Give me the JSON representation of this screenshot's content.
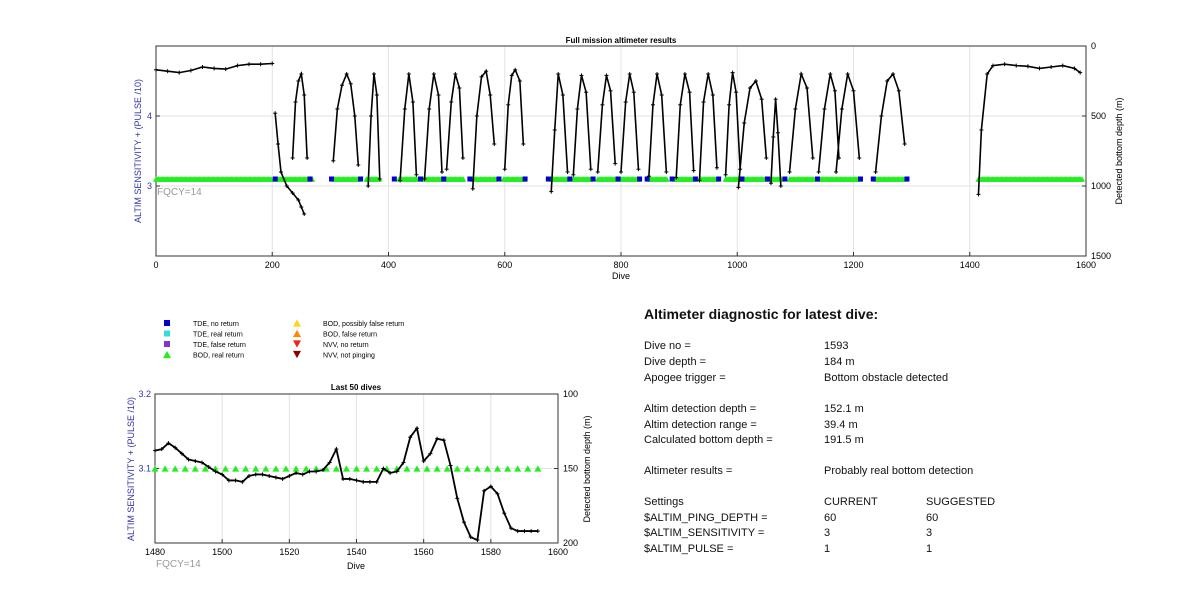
{
  "colors": {
    "tde_no_return": "#0000cc",
    "tde_real_return": "#33dddd",
    "tde_false_return": "#8833cc",
    "bod_real_return": "#22ee22",
    "bod_possibly_false": "#ffd21f",
    "bod_false_return": "#ff8800",
    "nvv_no_return": "#ee2222",
    "nvv_not_pinging": "#8b0000",
    "left_axis": "#3333aa",
    "fqcy_text": "#999999"
  },
  "legend": {
    "items": [
      {
        "label": "TDE, no return",
        "marker": "square",
        "color": "#0000cc"
      },
      {
        "label": "TDE, real return",
        "marker": "square",
        "color": "#33dddd"
      },
      {
        "label": "TDE, false return",
        "marker": "square",
        "color": "#8833cc"
      },
      {
        "label": "BOD, real return",
        "marker": "triangle-up",
        "color": "#22ee22"
      },
      {
        "label": "BOD, possibly false return",
        "marker": "triangle-up",
        "color": "#ffd21f"
      },
      {
        "label": "BOD, false return",
        "marker": "triangle-up",
        "color": "#ff8800"
      },
      {
        "label": "NVV, no return",
        "marker": "triangle-down",
        "color": "#ee2222"
      },
      {
        "label": "NVV, not pinging",
        "marker": "triangle-down",
        "color": "#8b0000"
      }
    ]
  },
  "chart_data": [
    {
      "type": "line",
      "title": "Full mission altimeter results",
      "xlabel": "Dive",
      "ylabel_left": "ALTIM SENSITIVITY + (PULSE /10)",
      "ylabel_right": "Detected bottom depth (m)",
      "xlim": [
        0,
        1600
      ],
      "ylim_left": [
        2,
        5
      ],
      "ylim_right": [
        1500,
        0
      ],
      "xticks": [
        "0",
        "200",
        "400",
        "600",
        "800",
        "1000",
        "1200",
        "1400",
        "1600"
      ],
      "yticks_left": [
        "3",
        "4"
      ],
      "yticks_right": [
        "0",
        "500",
        "1000",
        "1500"
      ],
      "annotation": "FQCY=14",
      "grid": true,
      "series": [
        {
          "kind": "bottom_depth",
          "segments": [
            {
              "x": [
                0,
                20,
                40,
                60,
                80,
                100,
                120,
                140,
                160,
                180,
                200
              ],
              "y": [
                170,
                180,
                190,
                175,
                150,
                160,
                165,
                140,
                130,
                130,
                125
              ]
            },
            {
              "x": [
                205,
                210,
                215,
                225,
                235,
                245,
                250,
                255
              ],
              "y": [
                480,
                700,
                900,
                1000,
                1050,
                1100,
                1150,
                1200
              ]
            },
            {
              "x": [
                235,
                240,
                245,
                250,
                255,
                260
              ],
              "y": [
                800,
                400,
                250,
                200,
                350,
                800
              ]
            },
            {
              "x": [
                305,
                312,
                320,
                328,
                335,
                342,
                348
              ],
              "y": [
                820,
                450,
                280,
                200,
                270,
                500,
                850
              ]
            },
            {
              "x": [
                365,
                370,
                375,
                380,
                385
              ],
              "y": [
                1000,
                500,
                200,
                350,
                950
              ]
            },
            {
              "x": [
                420,
                428,
                435,
                442,
                448
              ],
              "y": [
                960,
                450,
                200,
                400,
                920
              ]
            },
            {
              "x": [
                462,
                470,
                478,
                486,
                492
              ],
              "y": [
                950,
                450,
                200,
                350,
                900
              ]
            },
            {
              "x": [
                500,
                508,
                515,
                522,
                528
              ],
              "y": [
                880,
                400,
                200,
                300,
                800
              ]
            },
            {
              "x": [
                545,
                552,
                560,
                568,
                575,
                582
              ],
              "y": [
                1020,
                500,
                220,
                180,
                350,
                700
              ]
            },
            {
              "x": [
                600,
                606,
                612,
                618,
                626,
                632
              ],
              "y": [
                880,
                420,
                210,
                170,
                250,
                700
              ]
            },
            {
              "x": [
                680,
                686,
                692,
                700,
                708
              ],
              "y": [
                1040,
                600,
                200,
                350,
                900
              ]
            },
            {
              "x": [
                718,
                725,
                732,
                740,
                748
              ],
              "y": [
                920,
                450,
                210,
                330,
                880
              ]
            },
            {
              "x": [
                760,
                768,
                775,
                782,
                790
              ],
              "y": [
                900,
                420,
                210,
                320,
                840
              ]
            },
            {
              "x": [
                800,
                808,
                815,
                822,
                830
              ],
              "y": [
                900,
                400,
                200,
                330,
                880
              ]
            },
            {
              "x": [
                848,
                855,
                862,
                870,
                878
              ],
              "y": [
                930,
                420,
                200,
                350,
                900
              ]
            },
            {
              "x": [
                895,
                902,
                910,
                918,
                925
              ],
              "y": [
                940,
                420,
                200,
                330,
                890
              ]
            },
            {
              "x": [
                935,
                942,
                950,
                958,
                965
              ],
              "y": [
                960,
                400,
                200,
                350,
                870
              ]
            },
            {
              "x": [
                980,
                986,
                992,
                998,
                1005
              ],
              "y": [
                920,
                420,
                190,
                330,
                880
              ]
            },
            {
              "x": [
                1002,
                1012,
                1022,
                1032,
                1042,
                1050
              ],
              "y": [
                1010,
                550,
                300,
                250,
                380,
                800
              ]
            },
            {
              "x": [
                1058,
                1062,
                1066,
                1070,
                1075
              ],
              "y": [
                980,
                650,
                380,
                620,
                1000
              ]
            },
            {
              "x": [
                1090,
                1100,
                1110,
                1120,
                1130
              ],
              "y": [
                900,
                450,
                200,
                300,
                800
              ]
            },
            {
              "x": [
                1140,
                1150,
                1160,
                1168,
                1175
              ],
              "y": [
                900,
                450,
                200,
                320,
                800
              ]
            },
            {
              "x": [
                1170,
                1180,
                1190,
                1200,
                1210
              ],
              "y": [
                900,
                450,
                200,
                320,
                800
              ]
            },
            {
              "x": [
                1238,
                1248,
                1258,
                1268,
                1278,
                1288
              ],
              "y": [
                900,
                500,
                250,
                200,
                320,
                700
              ]
            },
            {
              "x": [
                1415,
                1420,
                1430,
                1440,
                1460,
                1480,
                1500,
                1520,
                1540,
                1560,
                1580,
                1590
              ],
              "y": [
                1060,
                600,
                200,
                140,
                130,
                140,
                145,
                160,
                150,
                140,
                160,
                190
              ]
            }
          ]
        },
        {
          "kind": "bod_real_return_bands",
          "y_left": 3.1,
          "ranges": [
            [
              0,
              200
            ],
            [
              205,
              270
            ],
            [
              305,
              350
            ],
            [
              362,
              385
            ],
            [
              418,
              450
            ],
            [
              460,
              500
            ],
            [
              500,
              530
            ],
            [
              545,
              585
            ],
            [
              598,
              635
            ],
            [
              680,
              710
            ],
            [
              718,
              750
            ],
            [
              760,
              795
            ],
            [
              800,
              832
            ],
            [
              848,
              880
            ],
            [
              893,
              928
            ],
            [
              935,
              968
            ],
            [
              980,
              1008
            ],
            [
              1002,
              1052
            ],
            [
              1056,
              1078
            ],
            [
              1090,
              1132
            ],
            [
              1140,
              1212
            ],
            [
              1238,
              1290
            ],
            [
              1415,
              1595
            ]
          ]
        },
        {
          "kind": "tde_no_return_markers",
          "y_left": 3.1,
          "x": [
            205,
            265,
            302,
            352,
            410,
            455,
            495,
            540,
            590,
            635,
            675,
            712,
            752,
            795,
            832,
            845,
            888,
            928,
            968,
            1008,
            1052,
            1082,
            1138,
            1212,
            1234,
            1292
          ]
        }
      ]
    },
    {
      "type": "line",
      "title": "Last 50 dives",
      "xlabel": "Dive",
      "ylabel_left": "ALTIM SENSITIVITY + (PULSE /10)",
      "ylabel_right": "Detected bottom depth (m)",
      "xlim": [
        1480,
        1600
      ],
      "ylim_left": [
        3.0,
        3.2
      ],
      "ylim_right": [
        200,
        100
      ],
      "xticks": [
        "1480",
        "1500",
        "1520",
        "1540",
        "1560",
        "1580",
        "1600"
      ],
      "yticks_left": [
        "3.1",
        "3.2"
      ],
      "yticks_right": [
        "100",
        "150",
        "200"
      ],
      "annotation": "FQCY=14",
      "grid": true,
      "series": [
        {
          "kind": "bottom_depth",
          "x": [
            1480,
            1482,
            1484,
            1486,
            1488,
            1490,
            1492,
            1494,
            1496,
            1498,
            1500,
            1502,
            1504,
            1506,
            1508,
            1510,
            1512,
            1514,
            1516,
            1518,
            1520,
            1522,
            1524,
            1526,
            1528,
            1530,
            1532,
            1534,
            1536,
            1538,
            1540,
            1542,
            1544,
            1546,
            1548,
            1550,
            1552,
            1554,
            1556,
            1558,
            1560,
            1562,
            1564,
            1566,
            1568,
            1570,
            1572,
            1574,
            1576,
            1578,
            1580,
            1582,
            1584,
            1586,
            1588,
            1590,
            1592,
            1594
          ],
          "y": [
            138,
            137,
            133,
            136,
            140,
            144,
            145,
            146,
            149,
            152,
            154,
            158,
            158,
            159,
            155,
            154,
            154,
            155,
            156,
            157,
            155,
            153,
            154,
            152,
            152,
            151,
            146,
            137,
            157,
            157,
            158,
            159,
            159,
            159,
            150,
            153,
            152,
            146,
            129,
            123,
            145,
            140,
            130,
            131,
            148,
            170,
            186,
            196,
            198,
            165,
            162,
            167,
            180,
            190,
            192,
            192,
            192,
            192
          ]
        },
        {
          "kind": "bod_real_return_markers",
          "y_left": 3.1,
          "x": [
            1480,
            1483,
            1486,
            1489,
            1492,
            1495,
            1498,
            1501,
            1504,
            1507,
            1510,
            1513,
            1516,
            1519,
            1522,
            1525,
            1528,
            1531,
            1534,
            1537,
            1540,
            1543,
            1546,
            1549,
            1552,
            1555,
            1558,
            1561,
            1564,
            1567,
            1570,
            1573,
            1576,
            1579,
            1582,
            1585,
            1588,
            1591,
            1594
          ]
        }
      ]
    }
  ],
  "diagnostic": {
    "title": "Altimeter diagnostic for latest dive:",
    "rows": [
      {
        "label": "Dive no =",
        "value": "1593"
      },
      {
        "label": "Dive depth =",
        "value": "184 m"
      },
      {
        "label": "Apogee trigger =",
        "value": "Bottom obstacle detected"
      },
      {
        "label": "Altim detection depth =",
        "value": "152.1 m"
      },
      {
        "label": "Altim detection range =",
        "value": "39.4 m"
      },
      {
        "label": "Calculated bottom depth =",
        "value": "191.5 m"
      },
      {
        "label": "Altimeter results =",
        "value": "Probably real bottom detection"
      }
    ],
    "settings": {
      "header": {
        "label": "Settings",
        "current": "CURRENT",
        "suggested": "SUGGESTED"
      },
      "rows": [
        {
          "label": "$ALTIM_PING_DEPTH =",
          "current": "60",
          "suggested": "60"
        },
        {
          "label": "$ALTIM_SENSITIVITY =",
          "current": "3",
          "suggested": "3"
        },
        {
          "label": "$ALTIM_PULSE =",
          "current": "1",
          "suggested": "1"
        }
      ]
    }
  }
}
